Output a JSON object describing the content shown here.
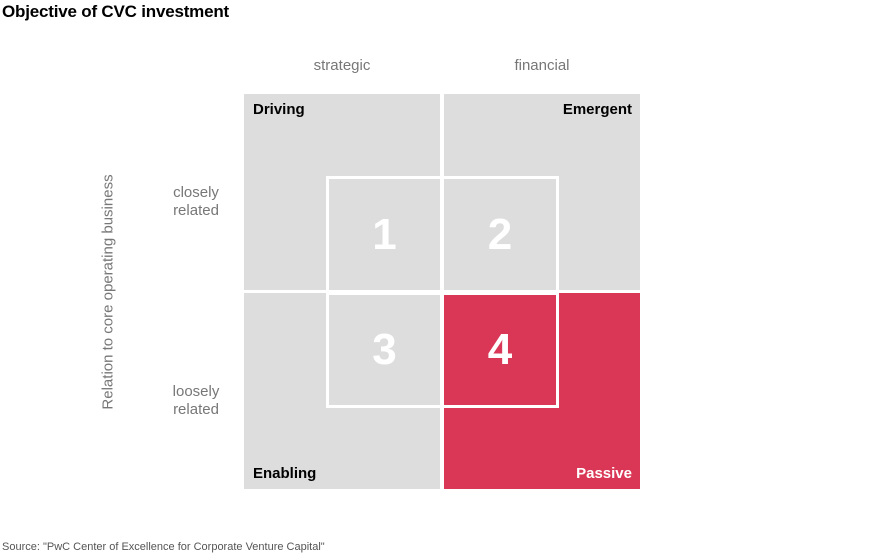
{
  "title": "Objective of CVC investment",
  "columns": [
    "strategic",
    "financial"
  ],
  "rows": [
    {
      "line1": "closely",
      "line2": "related"
    },
    {
      "line1": "loosely",
      "line2": "related"
    }
  ],
  "y_axis_label": "Relation to core operating business",
  "quadrants": {
    "top_left": "Driving",
    "top_right": "Emergent",
    "bottom_left": "Enabling",
    "bottom_right": "Passive"
  },
  "tiles": [
    "1",
    "2",
    "3",
    "4"
  ],
  "colors": {
    "quadrant": "#dddddd",
    "highlight": "#d93755",
    "tile_border": "#ffffff"
  },
  "source": "Source: \"PwC Center of Excellence for Corporate Venture Capital\""
}
